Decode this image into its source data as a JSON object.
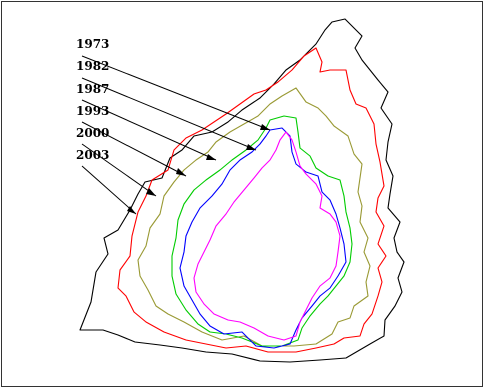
{
  "labels": [
    "1973",
    "1982",
    "1987",
    "1993",
    "2000",
    "2003"
  ],
  "contours": [
    {
      "year": "1973",
      "color": "#ff00ff"
    },
    {
      "year": "1982",
      "color": "#0000ff"
    },
    {
      "year": "1987",
      "color": "#00cc00"
    },
    {
      "year": "1993",
      "color": "#999933"
    },
    {
      "year": "2000",
      "color": "#ff0000"
    },
    {
      "year": "2003",
      "color": "#000000"
    }
  ]
}
